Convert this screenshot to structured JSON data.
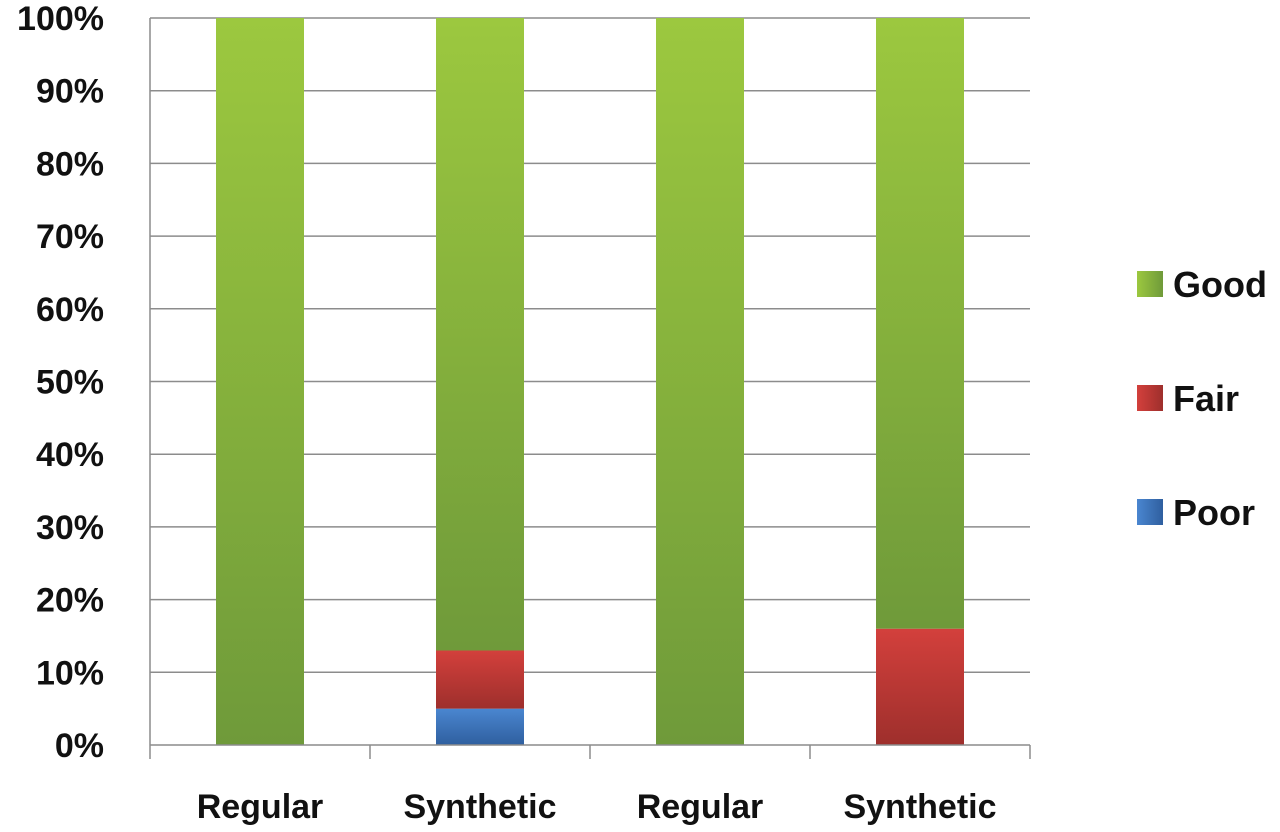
{
  "chart_data": {
    "type": "bar",
    "stacked": true,
    "percent_stacked": true,
    "categories": [
      "Regular",
      "Synthetic",
      "Regular",
      "Synthetic"
    ],
    "series": [
      {
        "name": "Poor",
        "values": [
          0,
          5,
          0,
          0
        ],
        "color": "#3a6fbf"
      },
      {
        "name": "Fair",
        "values": [
          0,
          8,
          0,
          16
        ],
        "color": "#c43a37"
      },
      {
        "name": "Good",
        "values": [
          100,
          87,
          100,
          84
        ],
        "color": "#8bb43e"
      }
    ],
    "legend_order": [
      "Good",
      "Fair",
      "Poor"
    ],
    "legend_position": "right",
    "y_ticks": [
      "0%",
      "10%",
      "20%",
      "30%",
      "40%",
      "50%",
      "60%",
      "70%",
      "80%",
      "90%",
      "100%"
    ],
    "ylim": [
      0,
      100
    ],
    "grid": true,
    "title": "",
    "xlabel": "",
    "ylabel": ""
  }
}
